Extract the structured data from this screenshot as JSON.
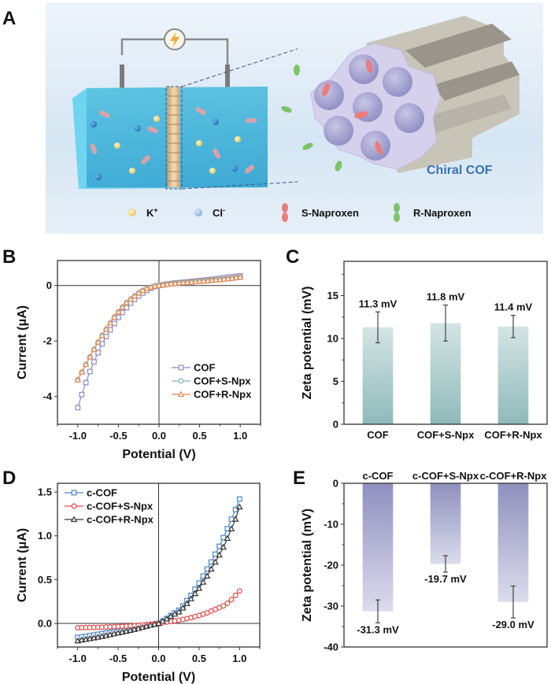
{
  "figure": {
    "panel_letters": [
      "A",
      "B",
      "C",
      "D",
      "E"
    ],
    "illustration": {
      "title": "Chiral COF",
      "title_color": "#3a72b0",
      "legend": [
        {
          "symbol": "k-ion-icon",
          "label": "K",
          "sup": "+",
          "color": "#f2d27a"
        },
        {
          "symbol": "cl-ion-icon",
          "label": "Cl",
          "sup": "-",
          "color": "#8fb6de"
        },
        {
          "symbol": "s-naproxen-icon",
          "label": "S-Naproxen",
          "color": "#ec7b7b"
        },
        {
          "symbol": "r-naproxen-icon",
          "label": "R-Naproxen",
          "color": "#7dc36a"
        }
      ]
    }
  },
  "chart_data": [
    {
      "id": "B",
      "type": "line",
      "title": "",
      "xlabel": "Potential (V)",
      "ylabel": "Current (μA)",
      "xlim": [
        -1.25,
        1.25
      ],
      "ylim": [
        -5,
        0.9
      ],
      "xticks": [
        -1.0,
        -0.5,
        0.0,
        0.5,
        1.0
      ],
      "xtick_labels": [
        "-1.0",
        "-0.5",
        "0.0",
        "0.5",
        "1.0"
      ],
      "yticks": [
        0,
        -2,
        -4
      ],
      "ytick_labels": [
        "0",
        "-2",
        "-4"
      ],
      "legend_position": "bottom-right",
      "x": [
        -1.0,
        -0.95,
        -0.9,
        -0.85,
        -0.8,
        -0.75,
        -0.7,
        -0.65,
        -0.6,
        -0.55,
        -0.5,
        -0.45,
        -0.4,
        -0.35,
        -0.3,
        -0.25,
        -0.2,
        -0.15,
        -0.1,
        -0.05,
        0.0,
        0.05,
        0.1,
        0.15,
        0.2,
        0.25,
        0.3,
        0.35,
        0.4,
        0.45,
        0.5,
        0.55,
        0.6,
        0.65,
        0.7,
        0.75,
        0.8,
        0.85,
        0.9,
        0.95,
        1.0
      ],
      "series": [
        {
          "name": "COF",
          "marker": "square",
          "color": "#8a8cc8",
          "values": [
            -4.4,
            -3.93,
            -3.5,
            -3.1,
            -2.75,
            -2.42,
            -2.1,
            -1.84,
            -1.6,
            -1.37,
            -1.15,
            -0.97,
            -0.8,
            -0.64,
            -0.5,
            -0.38,
            -0.27,
            -0.18,
            -0.1,
            -0.04,
            0.0,
            0.03,
            0.05,
            0.07,
            0.09,
            0.1,
            0.12,
            0.13,
            0.15,
            0.16,
            0.18,
            0.19,
            0.21,
            0.22,
            0.24,
            0.26,
            0.28,
            0.3,
            0.31,
            0.33,
            0.35
          ]
        },
        {
          "name": "COF+S-Npx",
          "marker": "circle",
          "color": "#7fb6b0",
          "values": [
            -3.4,
            -3.12,
            -2.85,
            -2.57,
            -2.3,
            -2.04,
            -1.8,
            -1.57,
            -1.35,
            -1.14,
            -0.95,
            -0.78,
            -0.62,
            -0.49,
            -0.38,
            -0.27,
            -0.18,
            -0.11,
            -0.06,
            -0.02,
            0.0,
            0.02,
            0.04,
            0.06,
            0.07,
            0.09,
            0.1,
            0.11,
            0.12,
            0.14,
            0.15,
            0.16,
            0.17,
            0.19,
            0.2,
            0.21,
            0.23,
            0.24,
            0.26,
            0.28,
            0.3
          ]
        },
        {
          "name": "COF+R-Npx",
          "marker": "triangle",
          "color": "#e58a55",
          "values": [
            -3.4,
            -3.12,
            -2.85,
            -2.57,
            -2.3,
            -2.04,
            -1.8,
            -1.57,
            -1.35,
            -1.14,
            -0.95,
            -0.78,
            -0.62,
            -0.49,
            -0.38,
            -0.27,
            -0.18,
            -0.11,
            -0.06,
            -0.02,
            0.0,
            0.02,
            0.04,
            0.06,
            0.07,
            0.09,
            0.1,
            0.11,
            0.12,
            0.14,
            0.15,
            0.16,
            0.17,
            0.19,
            0.2,
            0.21,
            0.23,
            0.24,
            0.26,
            0.28,
            0.3
          ]
        }
      ]
    },
    {
      "id": "C",
      "type": "bar",
      "title": "",
      "xlabel": "",
      "ylabel": "Zeta potential (mV)",
      "ylim": [
        0,
        19
      ],
      "yticks": [
        0,
        5,
        10,
        15
      ],
      "ytick_labels": [
        "0",
        "5",
        "10",
        "15"
      ],
      "categories": [
        "COF",
        "COF+S-Npx",
        "COF+R-Npx"
      ],
      "values": [
        11.3,
        11.8,
        11.4
      ],
      "errors": [
        1.8,
        2.1,
        1.3
      ],
      "value_labels": [
        "11.3 mV",
        "11.8 mV",
        "11.4 mV"
      ],
      "bar_color_top": "#d3e3e3",
      "bar_color_bottom": "#93bcbc"
    },
    {
      "id": "D",
      "type": "line",
      "title": "",
      "xlabel": "Potential (V)",
      "ylabel": "Current (μA)",
      "xlim": [
        -1.25,
        1.25
      ],
      "ylim": [
        -0.27,
        1.6
      ],
      "xticks": [
        -1.0,
        -0.5,
        0.0,
        0.5,
        1.0
      ],
      "xtick_labels": [
        "-1.0",
        "-0.5",
        "0.0",
        "0.5",
        "1.0"
      ],
      "yticks": [
        0.0,
        0.5,
        1.0,
        1.5
      ],
      "ytick_labels": [
        "0.0",
        "0.5",
        "1.0",
        "1.5"
      ],
      "legend_position": "top-left",
      "x": [
        -1.0,
        -0.95,
        -0.9,
        -0.85,
        -0.8,
        -0.75,
        -0.7,
        -0.65,
        -0.6,
        -0.55,
        -0.5,
        -0.45,
        -0.4,
        -0.35,
        -0.3,
        -0.25,
        -0.2,
        -0.15,
        -0.1,
        -0.05,
        0.0,
        0.05,
        0.1,
        0.15,
        0.2,
        0.25,
        0.3,
        0.35,
        0.4,
        0.45,
        0.5,
        0.55,
        0.6,
        0.65,
        0.7,
        0.75,
        0.8,
        0.85,
        0.9,
        0.95,
        1.0
      ],
      "series": [
        {
          "name": "c-COF",
          "marker": "square",
          "color": "#4a86c8",
          "values": [
            -0.16,
            -0.155,
            -0.148,
            -0.14,
            -0.133,
            -0.125,
            -0.118,
            -0.11,
            -0.103,
            -0.096,
            -0.09,
            -0.082,
            -0.074,
            -0.066,
            -0.058,
            -0.05,
            -0.04,
            -0.03,
            -0.02,
            -0.01,
            0.0,
            0.025,
            0.055,
            0.09,
            0.12,
            0.15,
            0.2,
            0.26,
            0.32,
            0.39,
            0.46,
            0.54,
            0.62,
            0.7,
            0.79,
            0.88,
            0.98,
            1.08,
            1.19,
            1.3,
            1.42
          ]
        },
        {
          "name": "c-COF+S-Npx",
          "marker": "circle",
          "color": "#e04848",
          "values": [
            -0.05,
            -0.049,
            -0.048,
            -0.047,
            -0.046,
            -0.045,
            -0.044,
            -0.042,
            -0.04,
            -0.038,
            -0.036,
            -0.034,
            -0.032,
            -0.029,
            -0.026,
            -0.022,
            -0.018,
            -0.014,
            -0.009,
            -0.005,
            0.0,
            0.008,
            0.015,
            0.022,
            0.028,
            0.035,
            0.045,
            0.055,
            0.065,
            0.078,
            0.09,
            0.105,
            0.12,
            0.14,
            0.16,
            0.18,
            0.2,
            0.23,
            0.27,
            0.32,
            0.37
          ]
        },
        {
          "name": "c-COF+R-Npx",
          "marker": "triangle",
          "color": "#333333",
          "values": [
            -0.2,
            -0.19,
            -0.183,
            -0.175,
            -0.167,
            -0.158,
            -0.15,
            -0.14,
            -0.13,
            -0.12,
            -0.11,
            -0.1,
            -0.09,
            -0.08,
            -0.07,
            -0.058,
            -0.046,
            -0.034,
            -0.022,
            -0.01,
            0.0,
            0.025,
            0.05,
            0.08,
            0.105,
            0.13,
            0.175,
            0.225,
            0.28,
            0.34,
            0.4,
            0.47,
            0.54,
            0.62,
            0.7,
            0.78,
            0.87,
            0.97,
            1.08,
            1.19,
            1.33
          ]
        }
      ]
    },
    {
      "id": "E",
      "type": "bar",
      "title": "",
      "xlabel": "",
      "ylabel": "Zeta potential (mV)",
      "ylim": [
        -40,
        0
      ],
      "yticks": [
        0,
        -10,
        -20,
        -30,
        -40
      ],
      "ytick_labels": [
        "0",
        "-10",
        "-20",
        "-30",
        "-40"
      ],
      "categories": [
        "c-COF",
        "c-COF+S-Npx",
        "c-COF+R-Npx"
      ],
      "values": [
        -31.3,
        -19.7,
        -29.0
      ],
      "errors": [
        2.8,
        2.0,
        3.9
      ],
      "value_labels": [
        "-31.3 mV",
        "-19.7 mV",
        "-29.0 mV"
      ],
      "bar_color_top": "#9596c2",
      "bar_color_bottom": "#d9d9ea"
    }
  ]
}
